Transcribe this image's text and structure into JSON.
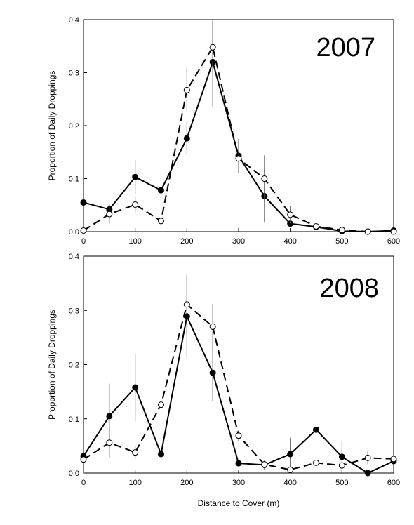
{
  "chart_data": [
    {
      "type": "line",
      "title": "2007",
      "xlabel": "",
      "ylabel": "Proportion of Daily Droppings",
      "xlim": [
        0,
        600
      ],
      "ylim": [
        0,
        0.4
      ],
      "xticks": [
        "0",
        "100",
        "200",
        "300",
        "400",
        "500",
        "600"
      ],
      "yticks": [
        "0.0",
        "0.1",
        "0.2",
        "0.3",
        "0.4"
      ],
      "grid": false,
      "x": [
        0,
        50,
        100,
        150,
        200,
        250,
        300,
        350,
        400,
        450,
        500,
        550,
        600
      ],
      "series": [
        {
          "style": "solid-filled",
          "values": [
            0.055,
            0.042,
            0.103,
            0.078,
            0.176,
            0.32,
            0.143,
            0.067,
            0.015,
            0.009,
            0.001,
            0.0,
            0.002
          ],
          "error": [
            0,
            0.008,
            0.032,
            0.02,
            0.03,
            0.085,
            0.032,
            0.05,
            0.003,
            0.006,
            0.001,
            0.001,
            0.001
          ]
        },
        {
          "style": "dashed-open",
          "values": [
            0.002,
            0.033,
            0.051,
            0.02,
            0.267,
            0.348,
            0.138,
            0.1,
            0.032,
            0.01,
            0.003,
            0.0,
            0.0
          ],
          "error": [
            0,
            0.018,
            0.015,
            0.006,
            0.042,
            0.047,
            0.012,
            0.044,
            0.016,
            0.003,
            0.002,
            0.001,
            0.002
          ]
        }
      ]
    },
    {
      "type": "line",
      "title": "2008",
      "xlabel": "Distance to Cover (m)",
      "ylabel": "Proportion of Daily Droppings",
      "xlim": [
        0,
        600
      ],
      "ylim": [
        0,
        0.4
      ],
      "xticks": [
        "0",
        "100",
        "200",
        "300",
        "400",
        "500",
        "600"
      ],
      "yticks": [
        "0.0",
        "0.1",
        "0.2",
        "0.3",
        "0.4"
      ],
      "grid": false,
      "x": [
        0,
        50,
        100,
        150,
        200,
        250,
        300,
        350,
        400,
        450,
        500,
        550,
        600
      ],
      "series": [
        {
          "style": "solid-filled",
          "values": [
            0.031,
            0.105,
            0.158,
            0.035,
            0.289,
            0.185,
            0.018,
            0.015,
            0.035,
            0.08,
            0.03,
            0.0,
            0.022
          ],
          "error": [
            0,
            0.06,
            0.063,
            0.022,
            0.076,
            0.052,
            0.003,
            0.009,
            0.03,
            0.047,
            0.029,
            0,
            0.003
          ]
        },
        {
          "style": "dashed-open",
          "values": [
            0.025,
            0.056,
            0.038,
            0.126,
            0.311,
            0.27,
            0.069,
            0.016,
            0.006,
            0.019,
            0.014,
            0.028,
            0.026
          ],
          "error": [
            0,
            0.027,
            0.012,
            0.032,
            0.055,
            0.042,
            0.011,
            0.006,
            0.002,
            0.01,
            0.005,
            0.012,
            0.004
          ]
        }
      ]
    }
  ]
}
